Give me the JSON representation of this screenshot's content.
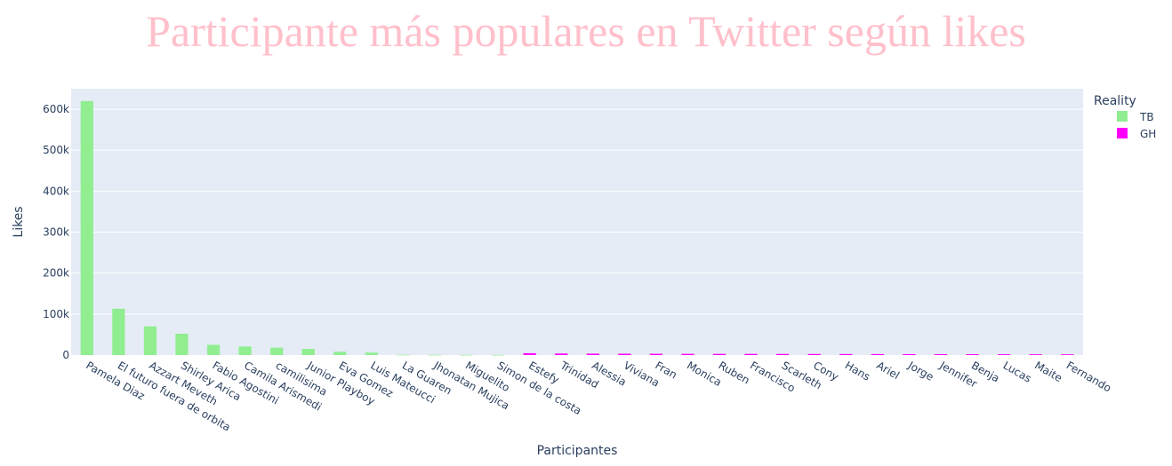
{
  "chart_data": {
    "type": "bar",
    "title": "Participante más populares en Twitter según likes",
    "xlabel": "Participantes",
    "ylabel": "Likes",
    "ylim": [
      0,
      650000
    ],
    "yticks": [
      0,
      100000,
      200000,
      300000,
      400000,
      500000,
      600000
    ],
    "ytick_labels": [
      "0",
      "100k",
      "200k",
      "300k",
      "400k",
      "500k",
      "600k"
    ],
    "grid": true,
    "legend_title": "Reality",
    "legend_position": "top-right",
    "categories": [
      "Pamela Diaz",
      "El futuro fuera de orbita",
      "Azzart Meveth",
      "Shirley Arica",
      "Fabio Agostini",
      "Camila Arismedi",
      "camilisima",
      "Junior Playboy",
      "Eva Gomez",
      "Luis Mateucci",
      "La Guaren",
      "Jhonatan Mujica",
      "Miguelito",
      "Simon de la costa",
      "Estefy",
      "Trinidad",
      "Alessia",
      "Viviana",
      "Fran",
      "Monica",
      "Ruben",
      "Francisco",
      "Scarleth",
      "Cony",
      "Hans",
      "Ariel",
      "Jorge",
      "Jennifer",
      "Benja",
      "Lucas",
      "Maite",
      "Fernando"
    ],
    "series": [
      {
        "name": "TB",
        "color": "#90ee90",
        "values": [
          620000,
          113000,
          70000,
          52000,
          25000,
          21000,
          18000,
          15000,
          8000,
          6000,
          600,
          500,
          400,
          300,
          null,
          null,
          null,
          null,
          null,
          null,
          null,
          null,
          null,
          null,
          null,
          null,
          null,
          null,
          null,
          null,
          null,
          null
        ]
      },
      {
        "name": "GH",
        "color": "#ff00ff",
        "values": [
          null,
          null,
          null,
          null,
          null,
          null,
          null,
          null,
          null,
          null,
          null,
          null,
          null,
          null,
          4500,
          3800,
          3500,
          3300,
          3100,
          3000,
          2900,
          2800,
          2700,
          2600,
          2500,
          2400,
          2300,
          2200,
          2100,
          2000,
          1900,
          1800
        ]
      }
    ]
  },
  "title_color": "#ffc0cb",
  "plot_bg": "#e5ecf6"
}
